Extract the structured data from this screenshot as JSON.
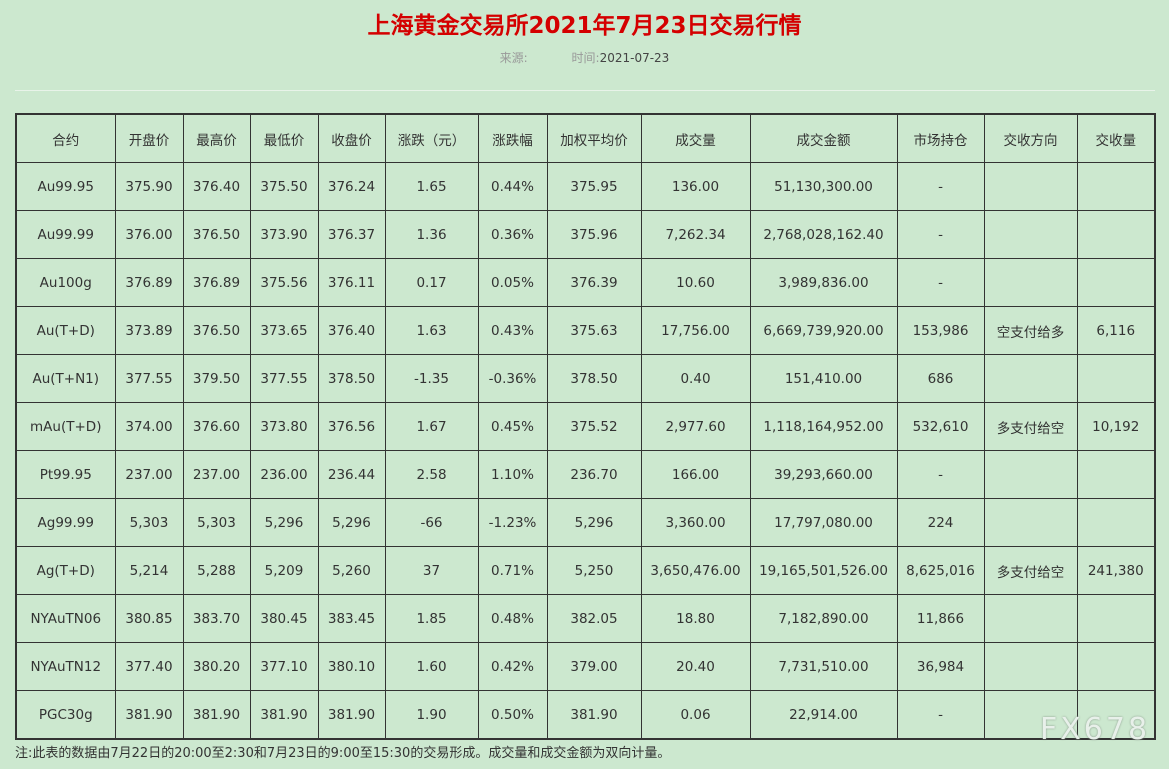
{
  "title": "上海黄金交易所2021年7月23日交易行情",
  "source_label": "来源:",
  "time_label": "时间:",
  "time_value": "2021-07-23",
  "table": {
    "headers": [
      "合约",
      "开盘价",
      "最高价",
      "最低价",
      "收盘价",
      "涨跌（元）",
      "涨跌幅",
      "加权平均价",
      "成交量",
      "成交金额",
      "市场持仓",
      "交收方向",
      "交收量"
    ],
    "rows": [
      [
        "Au99.95",
        "375.90",
        "376.40",
        "375.50",
        "376.24",
        "1.65",
        "0.44%",
        "375.95",
        "136.00",
        "51,130,300.00",
        "-",
        "",
        ""
      ],
      [
        "Au99.99",
        "376.00",
        "376.50",
        "373.90",
        "376.37",
        "1.36",
        "0.36%",
        "375.96",
        "7,262.34",
        "2,768,028,162.40",
        "-",
        "",
        ""
      ],
      [
        "Au100g",
        "376.89",
        "376.89",
        "375.56",
        "376.11",
        "0.17",
        "0.05%",
        "376.39",
        "10.60",
        "3,989,836.00",
        "-",
        "",
        ""
      ],
      [
        "Au(T+D)",
        "373.89",
        "376.50",
        "373.65",
        "376.40",
        "1.63",
        "0.43%",
        "375.63",
        "17,756.00",
        "6,669,739,920.00",
        "153,986",
        "空支付给多",
        "6,116"
      ],
      [
        "Au(T+N1)",
        "377.55",
        "379.50",
        "377.55",
        "378.50",
        "-1.35",
        "-0.36%",
        "378.50",
        "0.40",
        "151,410.00",
        "686",
        "",
        ""
      ],
      [
        "mAu(T+D)",
        "374.00",
        "376.60",
        "373.80",
        "376.56",
        "1.67",
        "0.45%",
        "375.52",
        "2,977.60",
        "1,118,164,952.00",
        "532,610",
        "多支付给空",
        "10,192"
      ],
      [
        "Pt99.95",
        "237.00",
        "237.00",
        "236.00",
        "236.44",
        "2.58",
        "1.10%",
        "236.70",
        "166.00",
        "39,293,660.00",
        "-",
        "",
        ""
      ],
      [
        "Ag99.99",
        "5,303",
        "5,303",
        "5,296",
        "5,296",
        "-66",
        "-1.23%",
        "5,296",
        "3,360.00",
        "17,797,080.00",
        "224",
        "",
        ""
      ],
      [
        "Ag(T+D)",
        "5,214",
        "5,288",
        "5,209",
        "5,260",
        "37",
        "0.71%",
        "5,250",
        "3,650,476.00",
        "19,165,501,526.00",
        "8,625,016",
        "多支付给空",
        "241,380"
      ],
      [
        "NYAuTN06",
        "380.85",
        "383.70",
        "380.45",
        "383.45",
        "1.85",
        "0.48%",
        "382.05",
        "18.80",
        "7,182,890.00",
        "11,866",
        "",
        ""
      ],
      [
        "NYAuTN12",
        "377.40",
        "380.20",
        "377.10",
        "380.10",
        "1.60",
        "0.42%",
        "379.00",
        "20.40",
        "7,731,510.00",
        "36,984",
        "",
        ""
      ],
      [
        "PGC30g",
        "381.90",
        "381.90",
        "381.90",
        "381.90",
        "1.90",
        "0.50%",
        "381.90",
        "0.06",
        "22,914.00",
        "-",
        "",
        ""
      ]
    ]
  },
  "note": "注:此表的数据由7月22日的20:00至2:30和7月23日的9:00至15:30的交易形成。成交量和成交金额为双向计量。",
  "watermark": "FX678"
}
